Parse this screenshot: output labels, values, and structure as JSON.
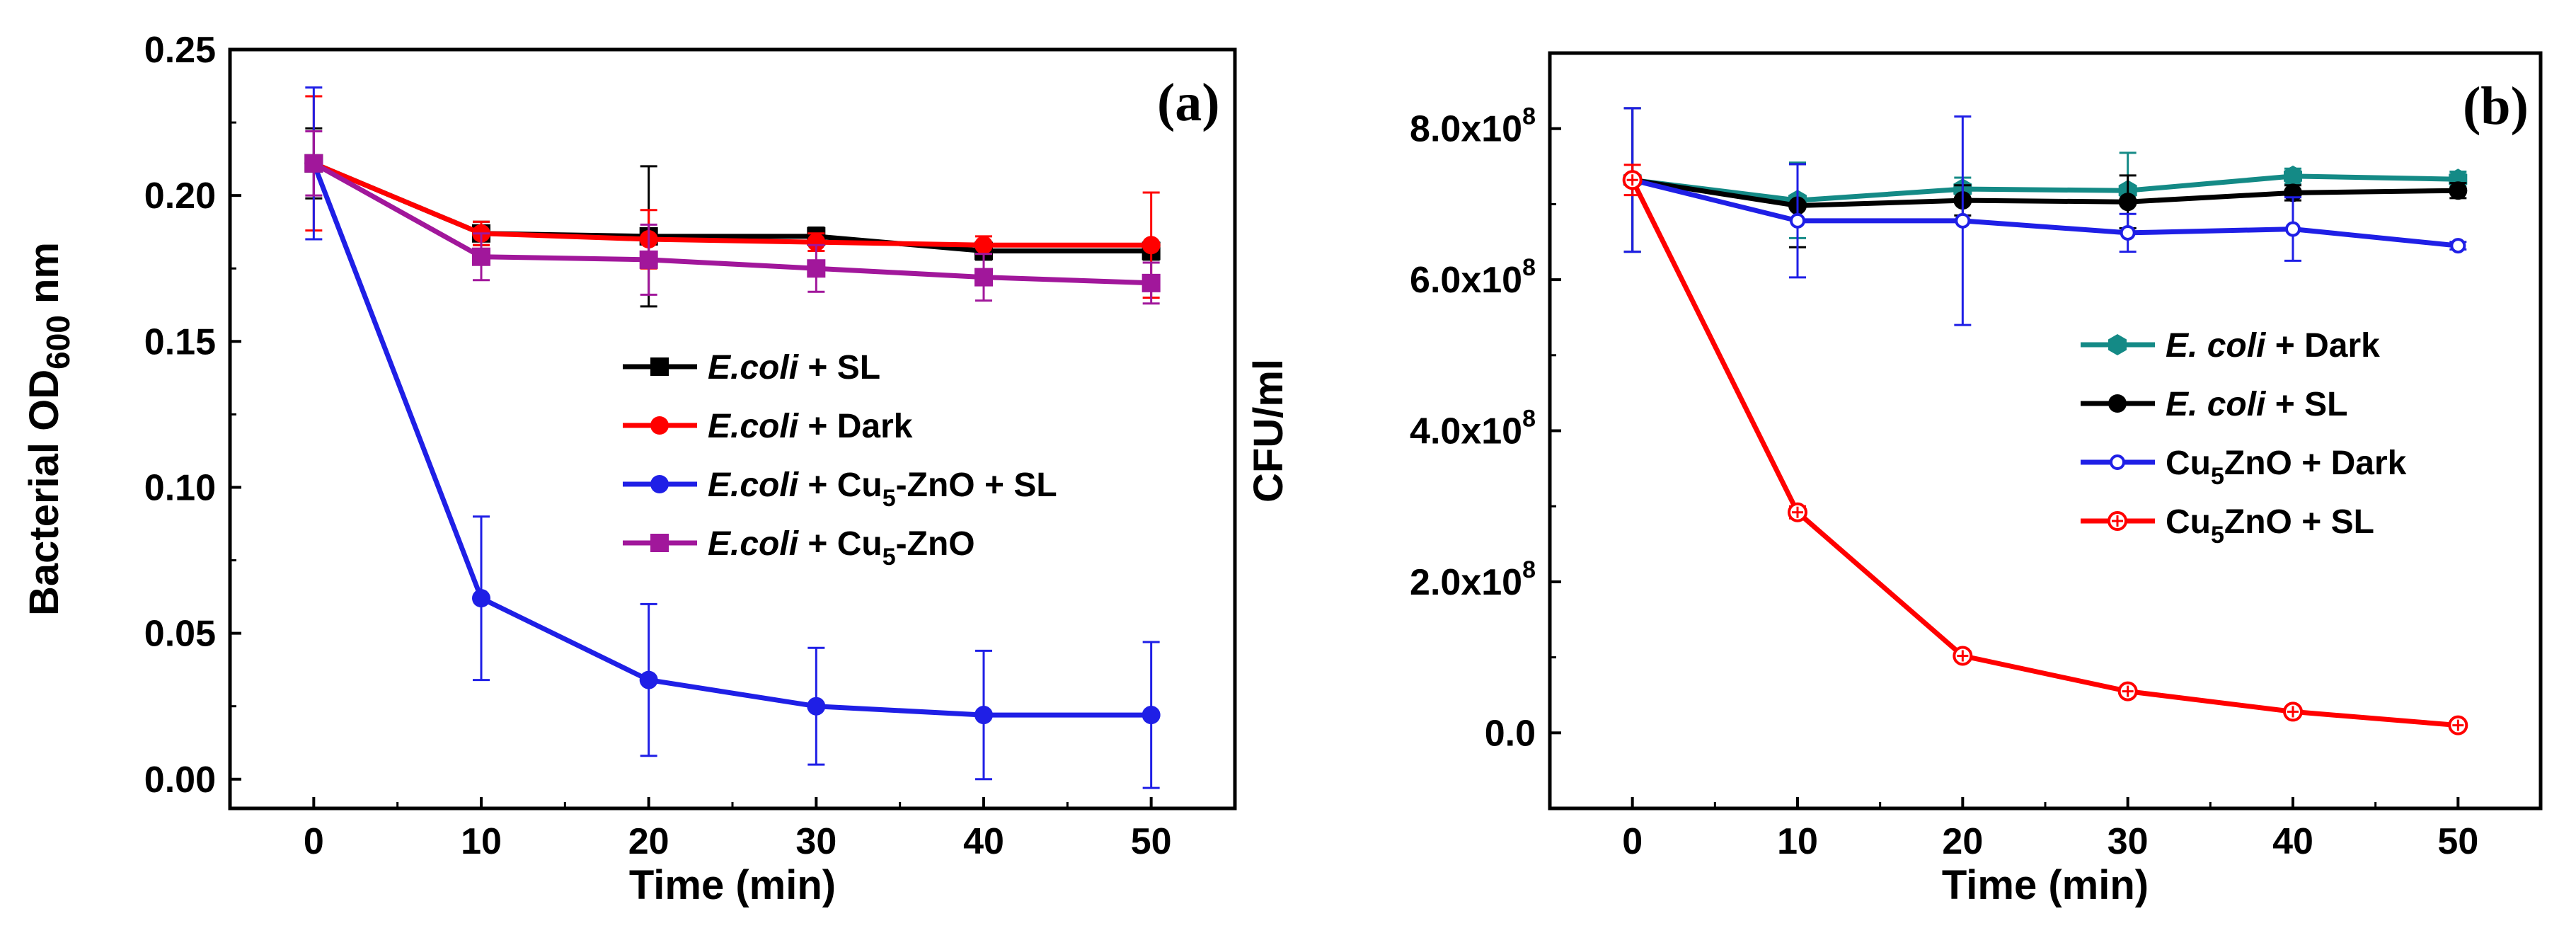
{
  "chart_data": [
    {
      "panel": "(a)",
      "type": "line",
      "x": [
        0,
        10,
        20,
        30,
        40,
        50
      ],
      "xlim": [
        -5,
        55
      ],
      "ylim": [
        -0.01,
        0.25
      ],
      "xticks": [
        0,
        10,
        20,
        30,
        40,
        50
      ],
      "yticks": [
        0.0,
        0.05,
        0.1,
        0.15,
        0.2,
        0.25
      ],
      "ytick_labels": [
        "0.00",
        "0.05",
        "0.10",
        "0.15",
        "0.20",
        "0.25"
      ],
      "xlabel": "Time (min)",
      "ylabel": "Bacterial OD",
      "ylabel_sub": "600",
      "ylabel_unit": " nm",
      "legend_position": "center-right",
      "series": [
        {
          "name": "E.coli + SL",
          "legend_italic": "E.coli",
          "legend_rest": " + SL",
          "legend_sub": "",
          "legend_tail": "",
          "color": "#000000",
          "marker": "square",
          "values": [
            0.211,
            0.187,
            0.186,
            0.186,
            0.181,
            0.181
          ],
          "err": [
            0.012,
            0.004,
            0.024,
            0.003,
            0.003,
            0.003
          ]
        },
        {
          "name": "E.coli + Dark",
          "legend_italic": "E.coli",
          "legend_rest": " + Dark",
          "legend_sub": "",
          "legend_tail": "",
          "color": "#ff0000",
          "marker": "circle",
          "values": [
            0.211,
            0.187,
            0.185,
            0.184,
            0.183,
            0.183
          ],
          "err": [
            0.023,
            0.004,
            0.01,
            0.003,
            0.003,
            0.018
          ]
        },
        {
          "name": "E.coli + Cu5-ZnO + SL",
          "legend_italic": "E.coli",
          "legend_rest": " + Cu",
          "legend_sub": "5",
          "legend_tail": "-ZnO + SL",
          "color": "#1f1fe6",
          "marker": "circle",
          "values": [
            0.211,
            0.062,
            0.034,
            0.025,
            0.022,
            0.022
          ],
          "err": [
            0.026,
            0.028,
            0.026,
            0.02,
            0.022,
            0.025
          ]
        },
        {
          "name": "E.coli + Cu5-ZnO",
          "legend_italic": "E.coli",
          "legend_rest": " + Cu",
          "legend_sub": "5",
          "legend_tail": "-ZnO",
          "color": "#a1179b",
          "marker": "square",
          "values": [
            0.211,
            0.179,
            0.178,
            0.175,
            0.172,
            0.17
          ],
          "err": [
            0.011,
            0.008,
            0.012,
            0.008,
            0.008,
            0.007
          ]
        }
      ],
      "panel_label": "(a)"
    },
    {
      "panel": "(b)",
      "type": "line",
      "x": [
        0,
        10,
        20,
        30,
        40,
        50
      ],
      "xlim": [
        -5,
        55
      ],
      "ylim": [
        -1.0,
        9.0
      ],
      "yscale_note": "values in units of 1e8 CFU/ml",
      "xticks": [
        0,
        10,
        20,
        30,
        40,
        50
      ],
      "yticks": [
        0,
        2,
        4,
        6,
        8
      ],
      "ytick_labels": [
        "0.0",
        "2.0x10",
        "4.0x10",
        "6.0x10",
        "8.0x10"
      ],
      "ytick_exps": [
        "",
        "8",
        "8",
        "8",
        "8"
      ],
      "xlabel": "Time (min)",
      "ylabel": "CFU/ml",
      "legend_position": "center-right",
      "series": [
        {
          "name": "E. coli + Dark",
          "legend_italic": "E. coli",
          "legend_rest": " + Dark",
          "legend_sub": "",
          "legend_tail": "",
          "color": "#148a86",
          "marker": "hexagon",
          "values": [
            7.32,
            7.05,
            7.2,
            7.18,
            7.37,
            7.33
          ],
          "err": [
            0.95,
            0.5,
            0.15,
            0.5,
            0.1,
            0.1
          ]
        },
        {
          "name": "E. coli + SL",
          "legend_italic": "E. coli",
          "legend_rest": " + SL",
          "legend_sub": "",
          "legend_tail": "",
          "color": "#000000",
          "marker": "circle",
          "values": [
            7.32,
            6.98,
            7.05,
            7.03,
            7.15,
            7.18
          ],
          "err": [
            0.95,
            0.55,
            0.2,
            0.35,
            0.1,
            0.1
          ]
        },
        {
          "name": "Cu5ZnO + Dark",
          "legend_italic": "",
          "legend_rest": "Cu",
          "legend_sub": "5",
          "legend_tail": "ZnO + Dark",
          "color": "#1f1fe6",
          "marker": "circle-small",
          "values": [
            7.32,
            6.78,
            6.78,
            6.62,
            6.67,
            6.45
          ],
          "err": [
            0.95,
            0.75,
            1.38,
            0.25,
            0.42,
            0.05
          ]
        },
        {
          "name": "Cu5ZnO + SL",
          "legend_italic": "",
          "legend_rest": "Cu",
          "legend_sub": "5",
          "legend_tail": "ZnO + SL",
          "color": "#ff0000",
          "marker": "circle-cross",
          "values": [
            7.32,
            2.92,
            1.02,
            0.55,
            0.28,
            0.1
          ],
          "err": [
            0.2,
            0.08,
            0.06,
            0.05,
            0.04,
            0.04
          ]
        }
      ],
      "panel_label": "(b)"
    }
  ]
}
